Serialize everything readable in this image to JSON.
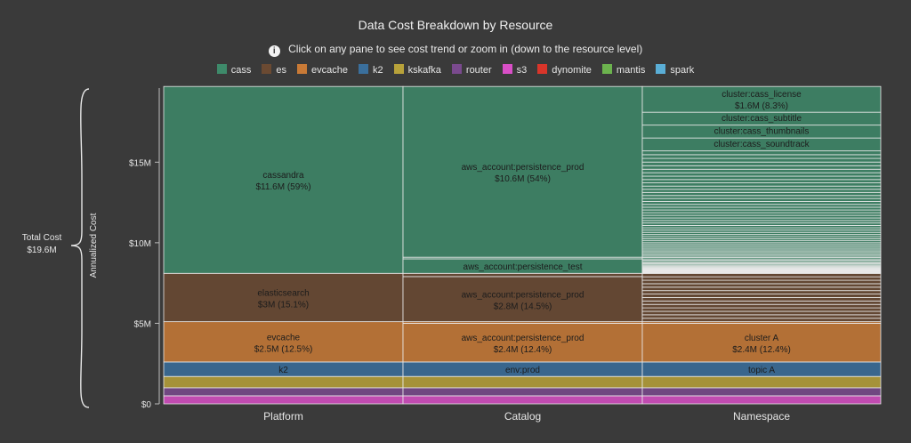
{
  "title": "Data Cost Breakdown by Resource",
  "info_text": "Click on any pane to see cost trend or zoom in (down to the resource level)",
  "total": {
    "label": "Total Cost",
    "value": "$19.6M"
  },
  "colors": {
    "cass": "#3e8a6a",
    "es": "#6b4a32",
    "evcache": "#c97a36",
    "k2": "#3a6f9c",
    "kskafka": "#b8a23a",
    "router": "#7a4a8e",
    "s3": "#d94fc7",
    "dynomite": "#d9352a",
    "mantis": "#6cb34e",
    "spark": "#5aaed6"
  },
  "legend": [
    {
      "key": "cass",
      "label": "cass"
    },
    {
      "key": "es",
      "label": "es"
    },
    {
      "key": "evcache",
      "label": "evcache"
    },
    {
      "key": "k2",
      "label": "k2"
    },
    {
      "key": "kskafka",
      "label": "kskafka"
    },
    {
      "key": "router",
      "label": "router"
    },
    {
      "key": "s3",
      "label": "s3"
    },
    {
      "key": "dynomite",
      "label": "dynomite"
    },
    {
      "key": "mantis",
      "label": "mantis"
    },
    {
      "key": "spark",
      "label": "spark"
    }
  ],
  "chart_data": {
    "type": "bar",
    "title": "Data Cost Breakdown by Resource",
    "ylabel": "Annualized Cost",
    "yunit": "M",
    "ylim": [
      0,
      19.6
    ],
    "yticks": [
      {
        "value": 0,
        "label": "$0"
      },
      {
        "value": 5,
        "label": "$5M"
      },
      {
        "value": 10,
        "label": "$10M"
      },
      {
        "value": 15,
        "label": "$15M"
      }
    ],
    "categories": [
      "Platform",
      "Catalog",
      "Namespace"
    ],
    "series_order": [
      "s3",
      "router",
      "kskafka",
      "k2",
      "evcache",
      "es",
      "cass"
    ],
    "segments": {
      "s3": 0.5,
      "router": 0.5,
      "kskafka": 0.7,
      "k2": 0.9,
      "evcache": 2.5,
      "es": 3.0,
      "cass": 11.6
    },
    "columns": [
      {
        "category": "Platform",
        "blocks": [
          {
            "series": "s3",
            "value": 0.5,
            "label": "",
            "sub": ""
          },
          {
            "series": "router",
            "value": 0.5,
            "label": "",
            "sub": ""
          },
          {
            "series": "kskafka",
            "value": 0.7,
            "label": "",
            "sub": ""
          },
          {
            "series": "k2",
            "value": 0.9,
            "label": "k2",
            "sub": ""
          },
          {
            "series": "evcache",
            "value": 2.5,
            "label": "evcache",
            "sub": "$2.5M (12.5%)"
          },
          {
            "series": "es",
            "value": 3.0,
            "label": "elasticsearch",
            "sub": "$3M (15.1%)"
          },
          {
            "series": "cass",
            "value": 11.6,
            "label": "cassandra",
            "sub": "$11.6M (59%)"
          }
        ]
      },
      {
        "category": "Catalog",
        "blocks": [
          {
            "series": "s3",
            "value": 0.5,
            "label": "",
            "sub": ""
          },
          {
            "series": "router",
            "value": 0.5,
            "label": "",
            "sub": ""
          },
          {
            "series": "kskafka",
            "value": 0.7,
            "label": "",
            "sub": ""
          },
          {
            "series": "k2",
            "value": 0.9,
            "label": "env:prod",
            "sub": ""
          },
          {
            "series": "evcache",
            "value": 2.4,
            "label": "aws_account:persistence_prod",
            "sub": "$2.4M (12.4%)"
          },
          {
            "series": "evcache",
            "value": 0.1,
            "label": "",
            "sub": ""
          },
          {
            "series": "es",
            "value": 2.8,
            "label": "aws_account:persistence_prod",
            "sub": "$2.8M (14.5%)"
          },
          {
            "series": "es",
            "value": 0.2,
            "label": "",
            "sub": ""
          },
          {
            "series": "cass",
            "value": 0.9,
            "label": "aws_account:persistence_test",
            "sub": ""
          },
          {
            "series": "cass",
            "value": 0.1,
            "label": "",
            "sub": ""
          },
          {
            "series": "cass",
            "value": 10.6,
            "label": "aws_account:persistence_prod",
            "sub": "$10.6M (54%)"
          }
        ]
      },
      {
        "category": "Namespace",
        "blocks": [
          {
            "series": "s3",
            "value": 0.5,
            "label": "",
            "sub": ""
          },
          {
            "series": "router",
            "value": 0.5,
            "label": "",
            "sub": ""
          },
          {
            "series": "kskafka",
            "value": 0.7,
            "label": "",
            "sub": ""
          },
          {
            "series": "k2",
            "value": 0.9,
            "label": "topic A",
            "sub": ""
          },
          {
            "series": "evcache",
            "value": 2.4,
            "label": "cluster A",
            "sub": "$2.4M (12.4%)"
          },
          {
            "series": "evcache",
            "value": 0.1,
            "label": "",
            "sub": ""
          }
        ],
        "es_slices": 14,
        "cass_named": [
          {
            "label": "cluster:cass_license",
            "value": 1.6,
            "sub": "$1.6M (8.3%)"
          },
          {
            "label": "cluster:cass_subtitle",
            "value": 0.8,
            "sub": ""
          },
          {
            "label": "cluster:cass_thumbnails",
            "value": 0.8,
            "sub": ""
          },
          {
            "label": "cluster:cass_soundtrack",
            "value": 0.8,
            "sub": ""
          }
        ],
        "cass_small_slices": 60
      }
    ]
  }
}
